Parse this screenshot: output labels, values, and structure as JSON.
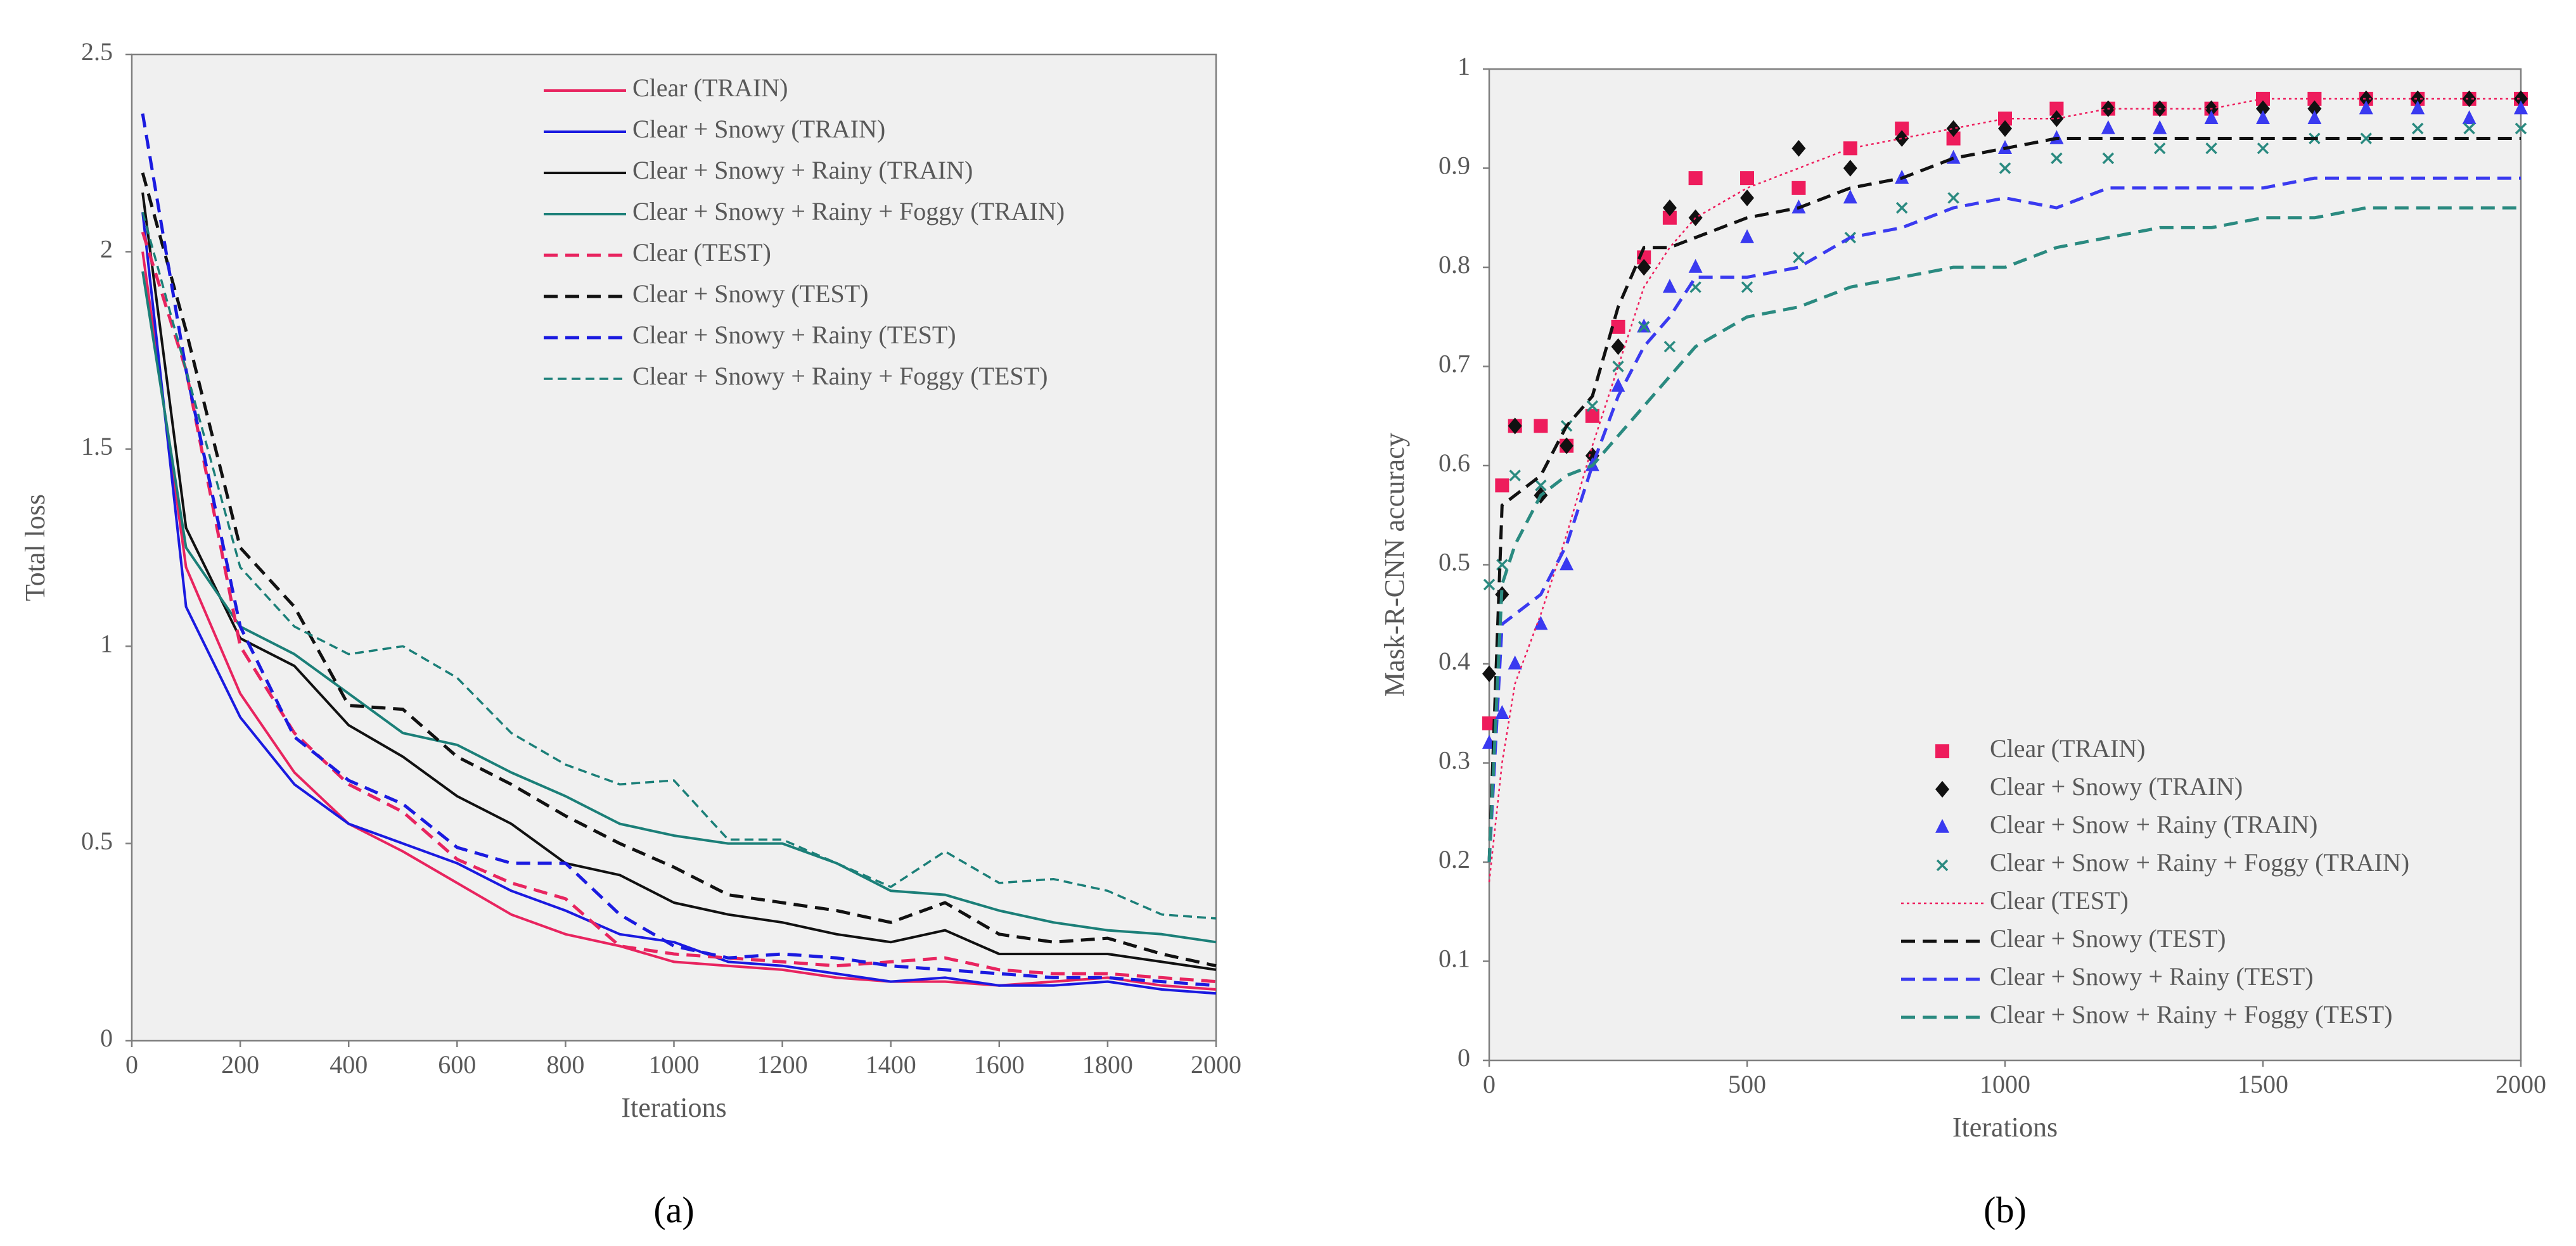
{
  "chart_data": [
    {
      "type": "line",
      "panel_label": "(a)",
      "xlabel": "Iterations",
      "ylabel": "Total loss",
      "xlim": [
        0,
        2000
      ],
      "ylim": [
        0,
        2.5
      ],
      "xticks": [
        0,
        200,
        400,
        600,
        800,
        1000,
        1200,
        1400,
        1600,
        1800,
        2000
      ],
      "yticks": [
        0,
        0.5,
        1,
        1.5,
        2,
        2.5
      ],
      "legend": "upper right",
      "x": [
        20,
        100,
        200,
        300,
        400,
        500,
        600,
        700,
        800,
        900,
        1000,
        1100,
        1200,
        1300,
        1400,
        1500,
        1600,
        1700,
        1800,
        1900,
        2000
      ],
      "series": [
        {
          "name": "Clear (TRAIN)",
          "color": "#e8245f",
          "dash": "solid",
          "values": [
            2.0,
            1.2,
            0.88,
            0.68,
            0.55,
            0.48,
            0.4,
            0.32,
            0.27,
            0.24,
            0.2,
            0.19,
            0.18,
            0.16,
            0.15,
            0.15,
            0.14,
            0.15,
            0.16,
            0.14,
            0.13
          ]
        },
        {
          "name": "Clear + Snowy (TRAIN)",
          "color": "#1a1ae0",
          "dash": "solid",
          "values": [
            2.1,
            1.1,
            0.82,
            0.65,
            0.55,
            0.5,
            0.45,
            0.38,
            0.33,
            0.27,
            0.25,
            0.2,
            0.19,
            0.17,
            0.15,
            0.16,
            0.14,
            0.14,
            0.15,
            0.13,
            0.12
          ]
        },
        {
          "name": "Clear + Snowy + Rainy (TRAIN)",
          "color": "#111111",
          "dash": "solid",
          "values": [
            2.15,
            1.3,
            1.02,
            0.95,
            0.8,
            0.72,
            0.62,
            0.55,
            0.45,
            0.42,
            0.35,
            0.32,
            0.3,
            0.27,
            0.25,
            0.28,
            0.22,
            0.22,
            0.22,
            0.2,
            0.18
          ]
        },
        {
          "name": "Clear + Snowy + Rainy + Foggy (TRAIN)",
          "color": "#1b7f78",
          "dash": "solid",
          "values": [
            1.95,
            1.25,
            1.05,
            0.98,
            0.88,
            0.78,
            0.75,
            0.68,
            0.62,
            0.55,
            0.52,
            0.5,
            0.5,
            0.45,
            0.38,
            0.37,
            0.33,
            0.3,
            0.28,
            0.27,
            0.25
          ]
        },
        {
          "name": "Clear (TEST)",
          "color": "#e8245f",
          "dash": "dashed",
          "values": [
            2.05,
            1.7,
            1.0,
            0.78,
            0.65,
            0.58,
            0.46,
            0.4,
            0.36,
            0.24,
            0.22,
            0.21,
            0.2,
            0.19,
            0.2,
            0.21,
            0.18,
            0.17,
            0.17,
            0.16,
            0.15
          ]
        },
        {
          "name": "Clear + Snowy (TEST)",
          "color": "#111111",
          "dash": "dashed",
          "values": [
            2.2,
            1.8,
            1.25,
            1.1,
            0.85,
            0.84,
            0.72,
            0.65,
            0.57,
            0.5,
            0.44,
            0.37,
            0.35,
            0.33,
            0.3,
            0.35,
            0.27,
            0.25,
            0.26,
            0.22,
            0.19
          ]
        },
        {
          "name": "Clear + Snowy + Rainy (TEST)",
          "color": "#1a1ae0",
          "dash": "dashed",
          "values": [
            2.35,
            1.7,
            1.05,
            0.77,
            0.66,
            0.6,
            0.49,
            0.45,
            0.45,
            0.32,
            0.24,
            0.21,
            0.22,
            0.21,
            0.19,
            0.18,
            0.17,
            0.16,
            0.16,
            0.15,
            0.14
          ]
        },
        {
          "name": "Clear + Snowy + Rainy + Foggy (TEST)",
          "color": "#1b7f78",
          "dash": "thin-dashed",
          "values": [
            2.1,
            1.7,
            1.2,
            1.05,
            0.98,
            1.0,
            0.92,
            0.78,
            0.7,
            0.65,
            0.66,
            0.51,
            0.51,
            0.45,
            0.39,
            0.48,
            0.4,
            0.41,
            0.38,
            0.32,
            0.31
          ]
        }
      ]
    },
    {
      "type": "scatter",
      "panel_label": "(b)",
      "xlabel": "Iterations",
      "ylabel": "Mask-R-CNN accuracy",
      "xlim": [
        0,
        2000
      ],
      "ylim": [
        0,
        1
      ],
      "xticks": [
        0,
        500,
        1000,
        1500,
        2000
      ],
      "yticks": [
        0,
        0.1,
        0.2,
        0.3,
        0.4,
        0.5,
        0.6,
        0.7,
        0.8,
        0.9,
        1
      ],
      "legend": "lower right",
      "x": [
        0,
        25,
        50,
        100,
        150,
        200,
        250,
        300,
        350,
        400,
        500,
        600,
        700,
        800,
        900,
        1000,
        1100,
        1200,
        1300,
        1400,
        1500,
        1600,
        1700,
        1800,
        1900,
        2000
      ],
      "series": [
        {
          "name": "Clear (TRAIN)",
          "color": "#ee1c5c",
          "marker": "square",
          "values": [
            0.34,
            0.58,
            0.64,
            0.64,
            0.62,
            0.65,
            0.74,
            0.81,
            0.85,
            0.89,
            0.89,
            0.88,
            0.92,
            0.94,
            0.93,
            0.95,
            0.96,
            0.96,
            0.96,
            0.96,
            0.97,
            0.97,
            0.97,
            0.97,
            0.97,
            0.97
          ]
        },
        {
          "name": "Clear + Snowy (TRAIN)",
          "color": "#111111",
          "marker": "diamond",
          "values": [
            0.39,
            0.47,
            0.64,
            0.57,
            0.62,
            0.61,
            0.72,
            0.8,
            0.86,
            0.85,
            0.87,
            0.92,
            0.9,
            0.93,
            0.94,
            0.94,
            0.95,
            0.96,
            0.96,
            0.96,
            0.96,
            0.96,
            0.97,
            0.97,
            0.97,
            0.97
          ]
        },
        {
          "name": "Clear + Snow + Rainy (TRAIN)",
          "color": "#3a3af0",
          "marker": "triangle",
          "values": [
            0.32,
            0.35,
            0.4,
            0.44,
            0.5,
            0.6,
            0.68,
            0.74,
            0.78,
            0.8,
            0.83,
            0.86,
            0.87,
            0.89,
            0.91,
            0.92,
            0.93,
            0.94,
            0.94,
            0.95,
            0.95,
            0.95,
            0.96,
            0.96,
            0.95,
            0.96
          ]
        },
        {
          "name": "Clear + Snow + Rainy + Foggy (TRAIN)",
          "color": "#2a8a80",
          "marker": "x",
          "values": [
            0.48,
            0.5,
            0.59,
            0.58,
            0.64,
            0.66,
            0.7,
            0.74,
            0.72,
            0.78,
            0.78,
            0.81,
            0.83,
            0.86,
            0.87,
            0.9,
            0.91,
            0.91,
            0.92,
            0.92,
            0.92,
            0.93,
            0.93,
            0.94,
            0.94,
            0.94
          ]
        },
        {
          "name": "Clear (TEST)",
          "color": "#ee1c5c",
          "dash": "dotted",
          "values": [
            0.18,
            0.3,
            0.38,
            0.45,
            0.53,
            0.62,
            0.7,
            0.78,
            0.82,
            0.85,
            0.88,
            0.9,
            0.92,
            0.93,
            0.94,
            0.95,
            0.95,
            0.96,
            0.96,
            0.96,
            0.97,
            0.97,
            0.97,
            0.97,
            0.97,
            0.97
          ]
        },
        {
          "name": "Clear + Snowy (TEST)",
          "color": "#111111",
          "dash": "dashed",
          "values": [
            0.2,
            0.56,
            0.57,
            0.59,
            0.64,
            0.67,
            0.76,
            0.82,
            0.82,
            0.83,
            0.85,
            0.86,
            0.88,
            0.89,
            0.91,
            0.92,
            0.93,
            0.93,
            0.93,
            0.93,
            0.93,
            0.93,
            0.93,
            0.93,
            0.93,
            0.93
          ]
        },
        {
          "name": "Clear + Snowy + Rainy (TEST)",
          "color": "#3a3af0",
          "dash": "dashed",
          "values": [
            0.2,
            0.44,
            0.45,
            0.47,
            0.52,
            0.6,
            0.67,
            0.72,
            0.75,
            0.79,
            0.79,
            0.8,
            0.83,
            0.84,
            0.86,
            0.87,
            0.86,
            0.88,
            0.88,
            0.88,
            0.88,
            0.89,
            0.89,
            0.89,
            0.89,
            0.89
          ]
        },
        {
          "name": "Clear + Snow + Rainy + Foggy (TEST)",
          "color": "#2a8a80",
          "dash": "dashed",
          "values": [
            0.2,
            0.48,
            0.52,
            0.57,
            0.59,
            0.6,
            0.63,
            0.66,
            0.69,
            0.72,
            0.75,
            0.76,
            0.78,
            0.79,
            0.8,
            0.8,
            0.82,
            0.83,
            0.84,
            0.84,
            0.85,
            0.85,
            0.86,
            0.86,
            0.86,
            0.86
          ]
        }
      ]
    }
  ]
}
